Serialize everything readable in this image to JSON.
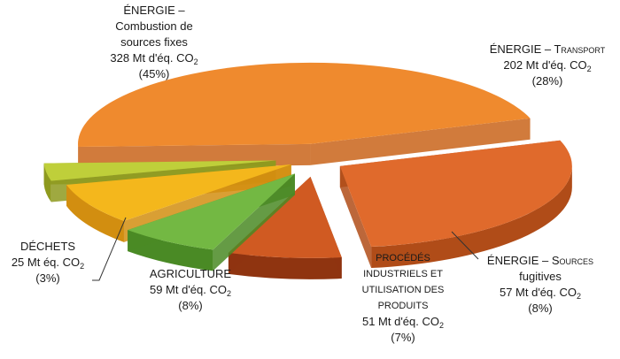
{
  "chart_data": {
    "type": "pie",
    "unit": "Mt d'éq. CO2",
    "slices": [
      {
        "key": "combustion",
        "name": "ÉNERGIE – Combustion de sources fixes",
        "value": 328,
        "percent": 45,
        "lines": [
          "ÉNERGIE –",
          "Combustion de",
          "sources fixes"
        ],
        "value_label": "328 Mt d'éq. CO",
        "sub": "2",
        "pct_label": "(45%)",
        "color": "#ef8a2e",
        "side": "#c9641a"
      },
      {
        "key": "transport",
        "name": "ÉNERGIE – Transport",
        "value": 202,
        "percent": 28,
        "lines": [
          "ÉNERGIE – Transport"
        ],
        "value_label": "202 Mt d'éq. CO",
        "sub": "2",
        "pct_label": "(28%)",
        "color": "#e06a2c",
        "side": "#b04c18"
      },
      {
        "key": "fugitives",
        "name": "ÉNERGIE – Sources fugitives",
        "value": 57,
        "percent": 8,
        "lines": [
          "ÉNERGIE – Sources",
          "fugitives"
        ],
        "value_label": "57 Mt d'éq. CO",
        "sub": "2",
        "pct_label": "(8%)",
        "color": "#d05a22",
        "side": "#8f3410"
      },
      {
        "key": "procedes",
        "name": "PROCÉDÉS INDUSTRIELS ET UTILISATION DES PRODUITS",
        "value": 51,
        "percent": 7,
        "lines": [
          "PROCÉDÉS",
          "INDUSTRIELS ET",
          "UTILISATION DES",
          "PRODUITS"
        ],
        "value_label": "51 Mt d'éq. CO",
        "sub": "2",
        "pct_label": "(7%)",
        "color": "#73b843",
        "side": "#4a8a25"
      },
      {
        "key": "agriculture",
        "name": "AGRICULTURE",
        "value": 59,
        "percent": 8,
        "lines": [
          "AGRICULTURE"
        ],
        "value_label": "59 Mt d'éq. CO",
        "sub": "2",
        "pct_label": "(8%)",
        "color": "#f4b71c",
        "side": "#d28e10"
      },
      {
        "key": "dechets",
        "name": "DÉCHETS",
        "value": 25,
        "percent": 3,
        "lines": [
          "DÉCHETS"
        ],
        "value_label": "25 Mt éq. CO",
        "sub": "2",
        "pct_label": "(3%)",
        "color": "#bfcf3a",
        "side": "#8e9a1e"
      }
    ],
    "title": "",
    "legend": "none"
  }
}
